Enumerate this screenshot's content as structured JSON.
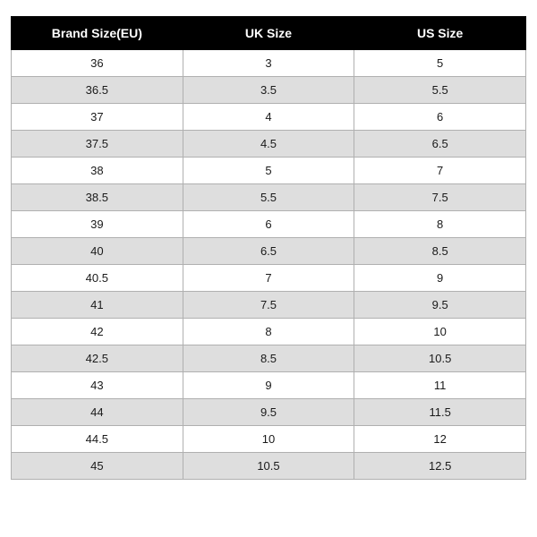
{
  "table": {
    "type": "table",
    "header_bg": "#000000",
    "header_fg": "#ffffff",
    "row_bg_even": "#ffffff",
    "row_bg_odd": "#dedede",
    "border_color": "#b0b0b0",
    "header_border_color": "#000000",
    "text_color": "#1a1a1a",
    "columns": [
      {
        "label": "Brand Size(EU)"
      },
      {
        "label": "UK Size"
      },
      {
        "label": "US Size"
      }
    ],
    "rows": [
      [
        "36",
        "3",
        "5"
      ],
      [
        "36.5",
        "3.5",
        "5.5"
      ],
      [
        "37",
        "4",
        "6"
      ],
      [
        "37.5",
        "4.5",
        "6.5"
      ],
      [
        "38",
        "5",
        "7"
      ],
      [
        "38.5",
        "5.5",
        "7.5"
      ],
      [
        "39",
        "6",
        "8"
      ],
      [
        "40",
        "6.5",
        "8.5"
      ],
      [
        "40.5",
        "7",
        "9"
      ],
      [
        "41",
        "7.5",
        "9.5"
      ],
      [
        "42",
        "8",
        "10"
      ],
      [
        "42.5",
        "8.5",
        "10.5"
      ],
      [
        "43",
        "9",
        "11"
      ],
      [
        "44",
        "9.5",
        "11.5"
      ],
      [
        "44.5",
        "10",
        "12"
      ],
      [
        "45",
        "10.5",
        "12.5"
      ]
    ]
  }
}
